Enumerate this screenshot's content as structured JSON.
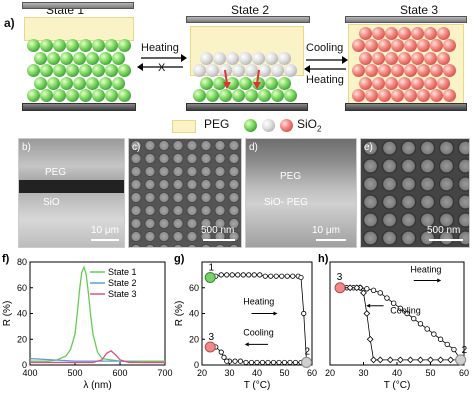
{
  "panel_a": {
    "label": "a)",
    "states": [
      "State 1",
      "State 2",
      "State 3"
    ],
    "arrow_heating": "Heating",
    "arrow_cooling": "Cooling",
    "arrow_heating_back": "Heating",
    "blocked_mark": "X",
    "legend_peg": "PEG",
    "legend_sio2": "SiO",
    "legend_sio2_sub": "2"
  },
  "sem": {
    "b": {
      "label": "b)",
      "text1": "PEG",
      "text2": "SiO",
      "scale": "10 μm"
    },
    "c": {
      "label": "c)",
      "scale": "500 nm"
    },
    "d": {
      "label": "d)",
      "text1": "PEG",
      "text2": "SiO",
      "text2b": "- PEG",
      "scale": "10 μm"
    },
    "e": {
      "label": "e)",
      "scale": "500 nm"
    }
  },
  "chart_data": [
    {
      "type": "line",
      "panel": "f)",
      "xlabel": "λ (nm)",
      "ylabel": "R (%)",
      "xlim": [
        400,
        700
      ],
      "ylim": [
        0,
        80
      ],
      "xticks": [
        400,
        500,
        600,
        700
      ],
      "yticks": [
        0,
        20,
        40,
        60,
        80
      ],
      "series": [
        {
          "name": "State 1",
          "color": "#66cc55",
          "x": [
            400,
            420,
            440,
            460,
            480,
            490,
            500,
            505,
            510,
            515,
            520,
            525,
            530,
            535,
            540,
            550,
            560,
            580,
            600,
            640,
            700
          ],
          "y": [
            3,
            3,
            3,
            4,
            7,
            12,
            24,
            40,
            58,
            72,
            76,
            70,
            55,
            38,
            24,
            10,
            5,
            4,
            3,
            3,
            3
          ]
        },
        {
          "name": "State 2",
          "color": "#5a9fe0",
          "x": [
            400,
            450,
            500,
            550,
            600,
            650,
            700
          ],
          "y": [
            5,
            4,
            3,
            3,
            3,
            2,
            2
          ]
        },
        {
          "name": "State 3",
          "color": "#e0507a",
          "x": [
            400,
            450,
            500,
            540,
            560,
            570,
            580,
            590,
            600,
            620,
            650,
            700
          ],
          "y": [
            2,
            2,
            2,
            2,
            4,
            9,
            11,
            8,
            4,
            2,
            2,
            2
          ]
        }
      ]
    },
    {
      "type": "scatter",
      "panel": "g)",
      "xlabel": "T (°C)",
      "ylabel": "R (%)",
      "xlim": [
        20,
        60
      ],
      "ylim": [
        0,
        80
      ],
      "xticks": [
        20,
        30,
        40,
        50,
        60
      ],
      "yticks": [
        0,
        20,
        40,
        60
      ],
      "labels": [
        "1",
        "2",
        "3",
        "Heating",
        "Cooling"
      ],
      "series": [
        {
          "name": "Heating",
          "x": [
            23,
            25,
            27,
            29,
            31,
            33,
            35,
            37,
            39,
            41,
            43,
            45,
            47,
            49,
            51,
            53,
            55,
            56,
            57,
            58
          ],
          "y": [
            68,
            69,
            70,
            70,
            70,
            70,
            70,
            70,
            70,
            70,
            69,
            69,
            69,
            69,
            69,
            69,
            69,
            68,
            40,
            3
          ]
        },
        {
          "name": "Cooling",
          "x": [
            58,
            56,
            54,
            52,
            50,
            48,
            46,
            44,
            42,
            40,
            38,
            36,
            34,
            32,
            30,
            29,
            28,
            27,
            25,
            23
          ],
          "y": [
            2,
            2,
            2,
            2,
            2,
            2,
            2,
            2,
            2,
            2,
            2,
            2,
            3,
            3,
            3,
            3,
            6,
            10,
            14,
            14
          ]
        }
      ]
    },
    {
      "type": "scatter",
      "panel": "h)",
      "xlabel": "T (°C)",
      "xlim": [
        20,
        60
      ],
      "ylim": [
        0,
        20
      ],
      "xticks": [
        20,
        30,
        40,
        50,
        60
      ],
      "labels": [
        "3",
        "2",
        "Heating",
        "Cooling"
      ],
      "series": [
        {
          "name": "Heating",
          "x": [
            23,
            25,
            27,
            29,
            31,
            33,
            35,
            37,
            39,
            41,
            43,
            45,
            47,
            49,
            51,
            53,
            55,
            57,
            59
          ],
          "y": [
            15,
            15,
            15,
            15,
            14.8,
            14.5,
            14,
            13,
            12,
            11,
            10,
            9,
            8,
            7,
            6,
            5,
            4,
            3,
            1
          ]
        },
        {
          "name": "Cooling",
          "x": [
            59,
            56,
            53,
            50,
            47,
            44,
            41,
            38,
            35,
            33,
            32,
            31,
            30,
            29,
            28,
            26,
            24
          ],
          "y": [
            1,
            1,
            1,
            1,
            1,
            1,
            1,
            1,
            1,
            1,
            5,
            10,
            14,
            15,
            15,
            15,
            15
          ]
        }
      ]
    }
  ]
}
